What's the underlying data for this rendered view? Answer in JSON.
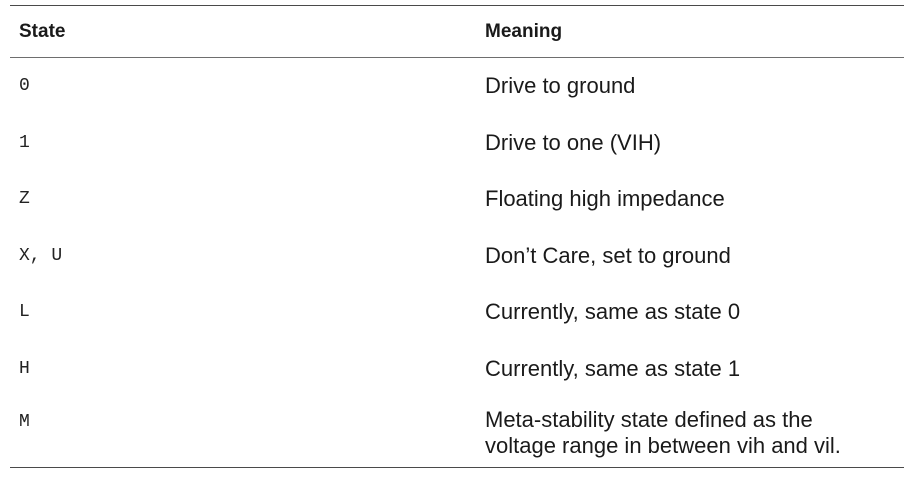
{
  "table": {
    "headers": {
      "state": "State",
      "meaning": "Meaning"
    },
    "rows": [
      {
        "state": "0",
        "meaning": "Drive to ground"
      },
      {
        "state": "1",
        "meaning": "Drive to one (VIH)"
      },
      {
        "state": "Z",
        "meaning": "Floating high impedance"
      },
      {
        "state": "X, U",
        "meaning": "Don’t Care, set to ground"
      },
      {
        "state": "L",
        "meaning": "Currently, same as state 0"
      },
      {
        "state": "H",
        "meaning": "Currently, same as state 1"
      },
      {
        "state": "M",
        "meaning": "Meta-stability state defined as the voltage range in between vih and vil."
      }
    ]
  }
}
